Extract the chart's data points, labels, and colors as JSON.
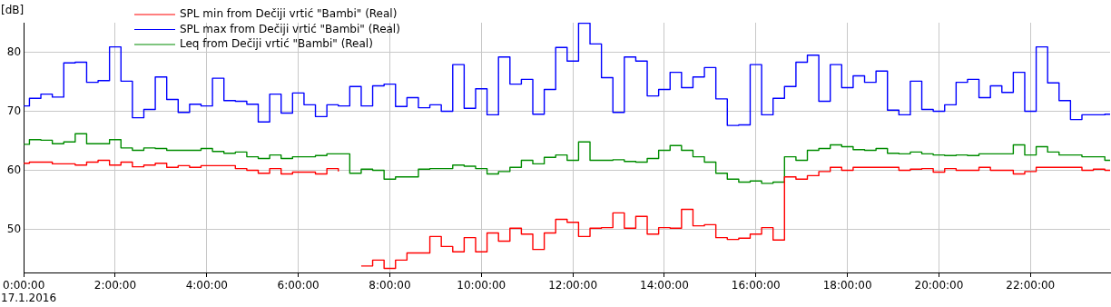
{
  "chart_data": {
    "type": "step",
    "ylabel": "[dB]",
    "annotations": [
      "17.1.2016"
    ],
    "legend": "top",
    "grid": true,
    "xlim": [
      0,
      23.74
    ],
    "ylim": [
      42.7,
      85
    ],
    "xticks": [
      {
        "value": 0,
        "label": "0:00:00"
      },
      {
        "value": 2,
        "label": "2:00:00"
      },
      {
        "value": 4,
        "label": "4:00:00"
      },
      {
        "value": 6,
        "label": "6:00:00"
      },
      {
        "value": 8,
        "label": "8:00:00"
      },
      {
        "value": 10,
        "label": "10:00:00"
      },
      {
        "value": 12,
        "label": "12:00:00"
      },
      {
        "value": 14,
        "label": "14:00:00"
      },
      {
        "value": 16,
        "label": "16:00:00"
      },
      {
        "value": 18,
        "label": "18:00:00"
      },
      {
        "value": 20,
        "label": "20:00:00"
      },
      {
        "value": 22,
        "label": "22:00:00"
      }
    ],
    "yticks": [
      50,
      60,
      70,
      80
    ],
    "x": [
      0,
      0.125,
      0.375,
      0.625,
      0.875,
      1.125,
      1.375,
      1.625,
      1.875,
      2.125,
      2.375,
      2.625,
      2.875,
      3.125,
      3.375,
      3.625,
      3.875,
      4.125,
      4.375,
      4.625,
      4.875,
      5.125,
      5.375,
      5.625,
      5.875,
      6.125,
      6.375,
      6.625,
      6.875,
      7.125,
      7.375,
      7.625,
      7.875,
      8.125,
      8.375,
      8.625,
      8.875,
      9.125,
      9.375,
      9.625,
      9.875,
      10.125,
      10.375,
      10.625,
      10.875,
      11.125,
      11.375,
      11.625,
      11.875,
      12.125,
      12.375,
      12.625,
      12.875,
      13.125,
      13.375,
      13.625,
      13.875,
      14.125,
      14.375,
      14.625,
      14.875,
      15.125,
      15.375,
      15.625,
      15.875,
      16.125,
      16.375,
      16.625,
      16.875,
      17.125,
      17.375,
      17.625,
      17.875,
      18.125,
      18.375,
      18.625,
      18.875,
      19.125,
      19.375,
      19.625,
      19.875,
      20.125,
      20.375,
      20.625,
      20.875,
      21.125,
      21.375,
      21.625,
      21.875,
      22.125,
      22.375,
      22.625,
      22.875,
      23.125,
      23.375,
      23.625,
      23.74
    ],
    "series": [
      {
        "name": "SPL min from Dečiji vrtić \"Bambi\" (Real)",
        "color": "#ff0000",
        "values": [
          61.2,
          61.4,
          61.4,
          61.1,
          61.1,
          60.9,
          61.4,
          61.7,
          60.9,
          61.4,
          60.6,
          60.9,
          61.2,
          60.5,
          60.8,
          60.5,
          60.8,
          60.8,
          60.8,
          60.3,
          60.0,
          59.5,
          60.3,
          59.4,
          59.7,
          59.7,
          59.4,
          60.3,
          59.8,
          null,
          43.8,
          44.8,
          43.4,
          44.8,
          46.0,
          46.0,
          48.8,
          47.1,
          46.2,
          48.6,
          46.2,
          49.4,
          48.0,
          50.2,
          49.2,
          46.6,
          49.4,
          51.7,
          51.2,
          48.8,
          50.2,
          50.3,
          52.8,
          50.2,
          52.2,
          49.2,
          50.3,
          50.2,
          53.4,
          50.6,
          50.8,
          48.6,
          48.3,
          48.5,
          49.2,
          50.3,
          48.2,
          58.9,
          58.5,
          59.1,
          59.8,
          60.5,
          60.0,
          60.5,
          60.5,
          60.5,
          60.5,
          60.0,
          60.2,
          60.3,
          59.7,
          60.3,
          60.0,
          60.0,
          60.5,
          60.0,
          60.0,
          59.4,
          59.8,
          60.5,
          60.5,
          60.5,
          60.5,
          60.0,
          60.2,
          60.0,
          60.0
        ]
      },
      {
        "name": "SPL max from Dečiji vrtić \"Bambi\" (Real)",
        "color": "#0000ff",
        "values": [
          70.9,
          72.2,
          72.9,
          72.4,
          78.2,
          78.3,
          74.9,
          75.2,
          80.9,
          75.1,
          68.9,
          70.3,
          75.8,
          72.0,
          69.8,
          71.2,
          70.9,
          75.6,
          71.8,
          71.7,
          71.2,
          68.2,
          72.9,
          69.7,
          73.1,
          71.1,
          69.1,
          71.1,
          70.9,
          74.2,
          70.9,
          74.3,
          74.6,
          70.8,
          72.3,
          70.6,
          71.1,
          70.0,
          77.9,
          70.5,
          73.8,
          69.4,
          79.2,
          74.6,
          75.4,
          69.5,
          73.7,
          80.8,
          78.5,
          84.9,
          81.4,
          75.7,
          69.8,
          79.2,
          78.5,
          72.6,
          73.7,
          76.6,
          74.0,
          75.8,
          77.4,
          72.1,
          67.6,
          67.7,
          77.9,
          69.4,
          72.2,
          74.2,
          78.3,
          79.5,
          71.7,
          77.9,
          74.0,
          76.0,
          74.9,
          76.8,
          70.2,
          69.4,
          75.1,
          70.3,
          70.0,
          71.1,
          74.9,
          75.4,
          72.3,
          74.3,
          73.2,
          76.6,
          70.0,
          80.9,
          74.8,
          71.8,
          68.6,
          69.4,
          69.4,
          69.5,
          69.5
        ]
      },
      {
        "name": "Leq from Dečiji vrtić \"Bambi\" (Real)",
        "color": "#008c00",
        "values": [
          64.4,
          65.2,
          65.1,
          64.5,
          64.8,
          66.2,
          64.5,
          64.5,
          65.2,
          63.8,
          63.4,
          63.8,
          63.7,
          63.4,
          63.4,
          63.4,
          63.7,
          63.2,
          62.9,
          63.1,
          62.3,
          62.0,
          62.6,
          62.0,
          62.3,
          62.3,
          62.5,
          62.8,
          62.8,
          59.5,
          60.2,
          60.0,
          58.5,
          58.9,
          58.9,
          60.2,
          60.3,
          60.3,
          60.9,
          60.7,
          60.3,
          59.4,
          59.8,
          60.5,
          61.7,
          61.1,
          62.2,
          62.6,
          61.7,
          64.8,
          61.7,
          61.7,
          61.8,
          61.5,
          61.4,
          62.0,
          63.4,
          64.2,
          63.4,
          62.3,
          61.4,
          59.5,
          58.5,
          58.0,
          58.2,
          57.8,
          58.0,
          62.3,
          61.7,
          63.4,
          63.7,
          64.3,
          64.0,
          63.5,
          63.4,
          63.7,
          62.9,
          62.8,
          63.1,
          62.8,
          62.6,
          62.5,
          62.6,
          62.5,
          62.8,
          62.8,
          62.8,
          64.3,
          62.6,
          64.0,
          63.1,
          62.6,
          62.6,
          62.3,
          62.3,
          61.7,
          61.7
        ]
      }
    ]
  }
}
